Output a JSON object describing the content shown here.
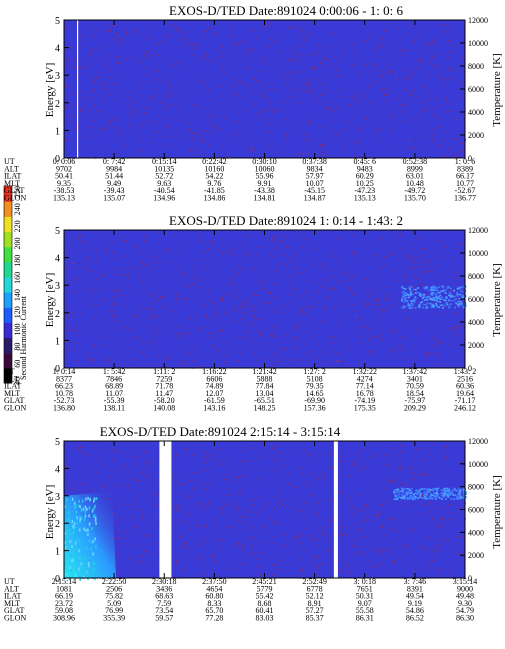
{
  "colors": {
    "background": "#3a3ad6",
    "speckle": "#8a2a6a",
    "speckle_hot": "#b03050",
    "cyan_feature": "#28c8e8",
    "light_blue_feature": "#3c78ff",
    "data_gap": "#ffffff"
  },
  "colorbar": {
    "label": "Second Harmonic Current",
    "ticks": [
      "40",
      "60",
      "80",
      "100",
      "120",
      "140",
      "160",
      "180",
      "200",
      "220",
      "240",
      "250"
    ],
    "colors": [
      "#000000",
      "#3a0a3a",
      "#2a1a6a",
      "#3a2ad6",
      "#1e5cff",
      "#1ea0ff",
      "#20d8d8",
      "#20d890",
      "#40e040",
      "#a0e020",
      "#f0e020",
      "#f09020",
      "#f03020"
    ]
  },
  "chart_data": [
    {
      "type": "heatmap",
      "title": "EXOS-D/TED   Date:891024  0:00:06 - 1: 0: 6",
      "ylabel": "Energy [eV]",
      "y2label": "Temperature [K]",
      "ylim": [
        0,
        5
      ],
      "y2lim": [
        0,
        12000
      ],
      "y_ticks": [
        "0",
        "1",
        "2",
        "3",
        "4",
        "5"
      ],
      "y2_ticks": [
        "0",
        "2000",
        "4000",
        "6000",
        "8000",
        "10000",
        "12000"
      ],
      "gaps": [
        [
          0.0325,
          0.0355
        ]
      ],
      "row_labels": [
        "UT",
        "ALT",
        "ILAT",
        "MLT",
        "GLAT",
        "GLON"
      ],
      "columns": [
        [
          "0: 0:06",
          "9702",
          "50.41",
          "9.35",
          "-38.53",
          "135.13"
        ],
        [
          "0: 7:42",
          "9984",
          "51.44",
          "9.49",
          "-39.43",
          "135.07"
        ],
        [
          "0:15:14",
          "10135",
          "52.72",
          "9.63",
          "-40.54",
          "134.96"
        ],
        [
          "0:22:42",
          "10160",
          "54.22",
          "9.76",
          "-41.85",
          "134.86"
        ],
        [
          "0:30:10",
          "10060",
          "55.96",
          "9.91",
          "-43.38",
          "134.81"
        ],
        [
          "0:37:38",
          "9834",
          "57.97",
          "10.07",
          "-45.15",
          "134.87"
        ],
        [
          "0:45: 6",
          "9483",
          "60.29",
          "10.25",
          "-47.23",
          "135.13"
        ],
        [
          "0:52:38",
          "8999",
          "63.01",
          "10.48",
          "-49.72",
          "135.70"
        ],
        [
          "1: 0: 6",
          "8389",
          "66.17",
          "10.77",
          "-52.67",
          "136.77"
        ]
      ],
      "features": []
    },
    {
      "type": "heatmap",
      "title": "EXOS-D/TED   Date:891024  1: 0:14 - 1:43: 2",
      "ylabel": "Energy [eV]",
      "y2label": "Temperature [K]",
      "ylim": [
        0,
        5
      ],
      "y2lim": [
        0,
        12000
      ],
      "y_ticks": [
        "0",
        "1",
        "2",
        "3",
        "4",
        "5"
      ],
      "y2_ticks": [
        "0",
        "2000",
        "4000",
        "6000",
        "8000",
        "10000",
        "12000"
      ],
      "gaps": [],
      "row_labels": [
        "UT",
        "ALT",
        "ILAT",
        "MLT",
        "GLAT",
        "GLON"
      ],
      "columns": [
        [
          "1: 0:14",
          "8377",
          "66.23",
          "10.78",
          "-52.73",
          "136.80"
        ],
        [
          "1: 5:42",
          "7846",
          "68.89",
          "11.07",
          "-55.39",
          "138.11"
        ],
        [
          "1:11: 2",
          "7259",
          "71.78",
          "11.47",
          "-58.20",
          "140.08"
        ],
        [
          "1:16:22",
          "6606",
          "74.89",
          "12.07",
          "-61.59",
          "143.16"
        ],
        [
          "1:21:42",
          "5888",
          "77.84",
          "13.04",
          "-65.51",
          "148.25"
        ],
        [
          "1:27: 2",
          "5108",
          "79.35",
          "14.65",
          "-69.90",
          "157.36"
        ],
        [
          "1:32:22",
          "4274",
          "77.14",
          "16.78",
          "-74.19",
          "175.35"
        ],
        [
          "1:37:42",
          "3401",
          "70.59",
          "18.54",
          "-75.97",
          "209.29"
        ],
        [
          "1:43: 2",
          "2516",
          "60.36",
          "19.64",
          "-71.17",
          "246.12"
        ]
      ],
      "features": [
        {
          "type": "band",
          "region": "upper-right",
          "y_range": [
            2.2,
            3.0
          ]
        }
      ]
    },
    {
      "type": "heatmap",
      "title": "EXOS-D/TED   Date:891024  2:15:14 - 3:15:14",
      "ylabel": "Energy [eV]",
      "y2label": "Temperature [K]",
      "ylim": [
        0,
        5
      ],
      "y2lim": [
        0,
        12000
      ],
      "y_ticks": [
        "0",
        "1",
        "2",
        "3",
        "4",
        "5"
      ],
      "y2_ticks": [
        "0",
        "2000",
        "4000",
        "6000",
        "8000",
        "10000",
        "12000"
      ],
      "gaps": [
        [
          0.238,
          0.268
        ],
        [
          0.673,
          0.683
        ]
      ],
      "row_labels": [
        "UT",
        "ALT",
        "ILAT",
        "MLT",
        "GLAT",
        "GLON"
      ],
      "columns": [
        [
          "2:15:14",
          "1081",
          "66.19",
          "23.72",
          "59.08",
          "308.96"
        ],
        [
          "2:22:50",
          "2506",
          "75.82",
          "5.09",
          "76.99",
          "355.39"
        ],
        [
          "2:30:18",
          "3436",
          "68.63",
          "7.59",
          "73.54",
          "59.57"
        ],
        [
          "2:37:50",
          "4654",
          "60.80",
          "8.33",
          "65.70",
          "77.28"
        ],
        [
          "2:45:21",
          "5779",
          "55.42",
          "8.68",
          "60.41",
          "83.03"
        ],
        [
          "2:52:49",
          "6778",
          "52.12",
          "8.91",
          "57.27",
          "85.37"
        ],
        [
          "3: 0:18",
          "7651",
          "50.31",
          "9.07",
          "55.58",
          "86.31"
        ],
        [
          "3: 7:46",
          "8391",
          "49.54",
          "9.19",
          "54.86",
          "86.52"
        ],
        [
          "3:15:14",
          "9000",
          "49.48",
          "9.30",
          "54.79",
          "86.30"
        ]
      ],
      "features": [
        {
          "type": "band",
          "region": "upper-right",
          "y_range": [
            2.9,
            3.3
          ]
        },
        {
          "type": "cone",
          "region": "left",
          "y_range": [
            0,
            3.0
          ]
        }
      ]
    }
  ]
}
